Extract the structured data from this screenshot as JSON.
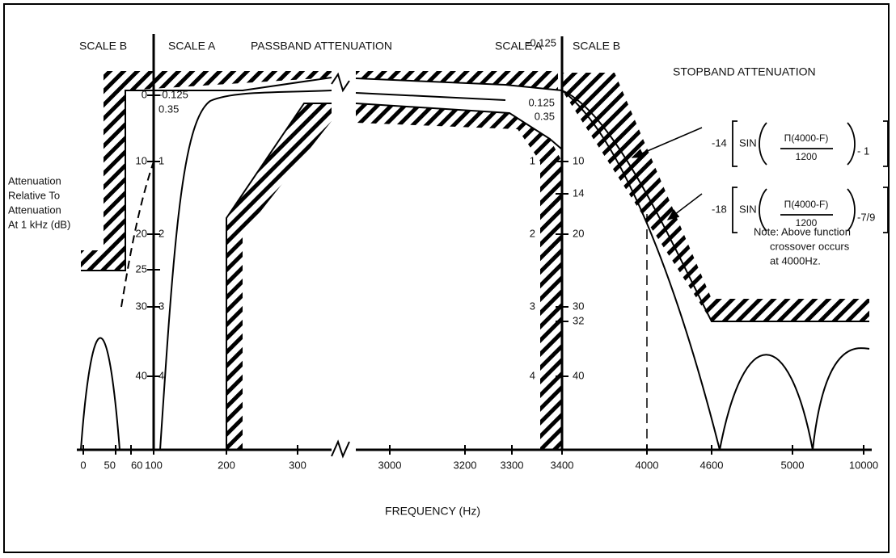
{
  "headers": [
    "SCALE B",
    "SCALE A",
    "PASSBAND ATTENUATION",
    "SCALE A",
    "SCALE B",
    "STOPBAND ATTENUATION"
  ],
  "left_scale_b": [
    "0",
    "10",
    "20",
    "25",
    "30",
    "40"
  ],
  "left_scale_a": [
    "-0.125",
    "0.35",
    "1",
    "2",
    "3",
    "4"
  ],
  "right_scale_a": [
    "-0.125",
    "0.125",
    "0.35",
    "1",
    "2",
    "3",
    "4"
  ],
  "right_scale_b": [
    "10",
    "14",
    "20",
    "30",
    "32",
    "40"
  ],
  "y_label": [
    "Attenuation",
    "Relative To",
    "Attenuation",
    "At 1 kHz (dB)"
  ],
  "x_ticks": [
    "0",
    "50",
    "60",
    "100",
    "200",
    "300",
    "3000",
    "3200",
    "3300",
    "3400",
    "4000",
    "4600",
    "5000",
    "10000"
  ],
  "x_label": "FREQUENCY (Hz)",
  "formula_1": {
    "coef": "-14",
    "sin": "SIN",
    "num": "Π(4000-F)",
    "den": "1200",
    "tail": "- 1"
  },
  "formula_2": {
    "coef": "-18",
    "sin": "SIN",
    "num": "Π(4000-F)",
    "den": "1200",
    "tail": "-7/9"
  },
  "note": [
    "Note: Above function",
    "crossover occurs",
    "at 4000Hz."
  ]
}
